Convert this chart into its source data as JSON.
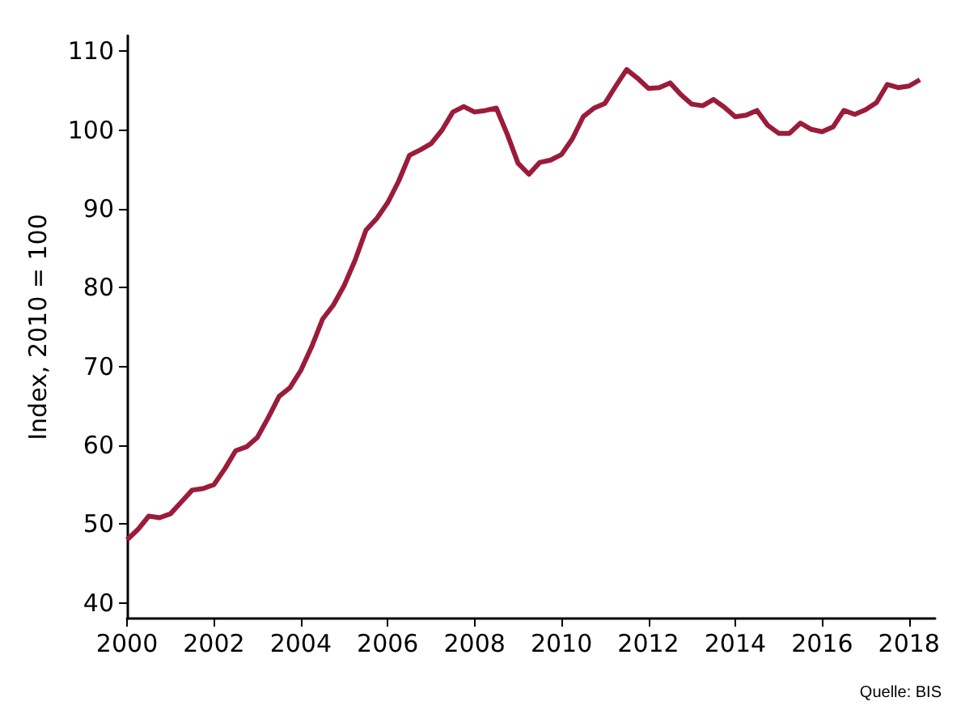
{
  "chart_data": {
    "type": "line",
    "ylabel": "Index, 2010 = 100",
    "annotations": [
      "Quelle: BIS"
    ],
    "x": [
      2000,
      2000.25,
      2000.5,
      2000.75,
      2001,
      2001.25,
      2001.5,
      2001.75,
      2002,
      2002.25,
      2002.5,
      2002.75,
      2003,
      2003.25,
      2003.5,
      2003.75,
      2004,
      2004.25,
      2004.5,
      2004.75,
      2005,
      2005.25,
      2005.5,
      2005.75,
      2006,
      2006.25,
      2006.5,
      2006.75,
      2007,
      2007.25,
      2007.5,
      2007.75,
      2008,
      2008.25,
      2008.5,
      2008.75,
      2009,
      2009.25,
      2009.5,
      2009.75,
      2010,
      2010.25,
      2010.5,
      2010.75,
      2011,
      2011.25,
      2011.5,
      2011.75,
      2012,
      2012.25,
      2012.5,
      2012.75,
      2013,
      2013.25,
      2013.5,
      2013.75,
      2014,
      2014.25,
      2014.5,
      2014.75,
      2015,
      2015.25,
      2015.5,
      2015.75,
      2016,
      2016.25,
      2016.5,
      2016.75,
      2017,
      2017.25,
      2017.5,
      2017.75,
      2018,
      2018.25
    ],
    "series": [
      {
        "color": "#9b1c3a",
        "values": [
          48,
          49.3,
          51,
          50.8,
          51.3,
          52.8,
          54.3,
          54.5,
          55,
          57,
          59.3,
          59.8,
          61,
          63.5,
          66.2,
          67.3,
          69.5,
          72.5,
          76,
          77.8,
          80.3,
          83.5,
          87.3,
          88.8,
          90.8,
          93.5,
          96.8,
          97.5,
          98.3,
          100,
          102.3,
          103,
          102.3,
          102.5,
          102.8,
          99.5,
          95.8,
          94.4,
          95.9,
          96.2,
          96.9,
          98.9,
          101.7,
          102.8,
          103.4,
          105.6,
          107.7,
          106.6,
          105.3,
          105.4,
          106,
          104.5,
          103.3,
          103.1,
          103.9,
          102.9,
          101.7,
          101.9,
          102.5,
          100.6,
          99.6,
          99.6,
          100.9,
          100.1,
          99.8,
          100.4,
          102.5,
          102,
          102.6,
          103.5,
          105.8,
          105.4,
          105.6,
          106.4
        ]
      }
    ],
    "xlim": [
      2000,
      2018.6
    ],
    "xticks": [
      2000,
      2002,
      2004,
      2006,
      2008,
      2010,
      2012,
      2014,
      2016,
      2018
    ],
    "ylim": [
      38,
      112
    ],
    "yticks": [
      40,
      50,
      60,
      70,
      80,
      90,
      100,
      110
    ],
    "grid": false,
    "marker": "none",
    "line_style": "solid"
  }
}
